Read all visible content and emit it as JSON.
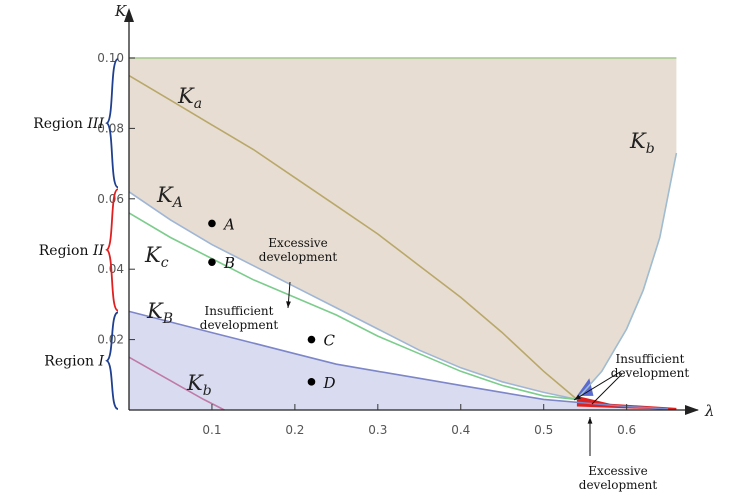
{
  "chart_data": {
    "type": "area",
    "xlabel": "λ",
    "ylabel": "K",
    "xlim": [
      0,
      0.68
    ],
    "ylim": [
      0,
      0.1
    ],
    "x_ticks": [
      "0.1",
      "0.2",
      "0.3",
      "0.4",
      "0.5",
      "0.6"
    ],
    "y_ticks": [
      "0.02",
      "0.04",
      "0.06",
      "0.08",
      "0.10"
    ],
    "curves": [
      {
        "id": "Ka_top",
        "label": "K",
        "sub": "a",
        "color": "#a3c98b",
        "x": [
          0,
          0.66
        ],
        "y": [
          0.1,
          0.1
        ]
      },
      {
        "id": "Ka",
        "label": "K",
        "sub": "a",
        "color": "#b9a86a",
        "x": [
          0,
          0.05,
          0.1,
          0.15,
          0.2,
          0.25,
          0.3,
          0.35,
          0.4,
          0.45,
          0.5,
          0.54
        ],
        "y": [
          0.095,
          0.088,
          0.081,
          0.074,
          0.066,
          0.058,
          0.05,
          0.041,
          0.032,
          0.022,
          0.011,
          0.003
        ]
      },
      {
        "id": "Kb_upper",
        "label": "K",
        "sub": "b",
        "color": "#9fbcd0",
        "x": [
          0.54,
          0.57,
          0.6,
          0.62,
          0.64,
          0.66
        ],
        "y": [
          0.003,
          0.011,
          0.023,
          0.034,
          0.049,
          0.073
        ]
      },
      {
        "id": "KA",
        "label": "K",
        "sub": "A",
        "color": "#9fb6d6",
        "x": [
          0,
          0.05,
          0.1,
          0.15,
          0.2,
          0.25,
          0.3,
          0.35,
          0.4,
          0.45,
          0.5,
          0.54
        ],
        "y": [
          0.062,
          0.054,
          0.047,
          0.041,
          0.035,
          0.029,
          0.023,
          0.017,
          0.012,
          0.008,
          0.005,
          0.003
        ]
      },
      {
        "id": "Kc",
        "label": "K",
        "sub": "c",
        "color": "#7ccc8c",
        "x": [
          0,
          0.05,
          0.1,
          0.15,
          0.2,
          0.25,
          0.3,
          0.35,
          0.4,
          0.45,
          0.5,
          0.54
        ],
        "y": [
          0.056,
          0.049,
          0.043,
          0.037,
          0.032,
          0.027,
          0.021,
          0.016,
          0.011,
          0.007,
          0.004,
          0.003
        ]
      },
      {
        "id": "KB",
        "label": "K",
        "sub": "B",
        "color": "#7d86c8",
        "x": [
          0,
          0.05,
          0.1,
          0.15,
          0.2,
          0.25,
          0.3,
          0.35,
          0.4,
          0.45,
          0.5,
          0.55,
          0.6,
          0.65
        ],
        "y": [
          0.028,
          0.025,
          0.022,
          0.019,
          0.016,
          0.013,
          0.011,
          0.009,
          0.007,
          0.005,
          0.003,
          0.002,
          0.001,
          0.0003
        ]
      },
      {
        "id": "Kb_lower",
        "label": "K",
        "sub": "b",
        "color": "#c07aa8",
        "x": [
          0,
          0.03,
          0.06,
          0.09,
          0.115
        ],
        "y": [
          0.015,
          0.011,
          0.007,
          0.003,
          0
        ]
      }
    ],
    "regions": [
      {
        "name": "upper",
        "color": "#e7ddd2",
        "between": [
          "Ka_top",
          "KA+Kb_upper"
        ]
      },
      {
        "name": "lower",
        "color": "#d9dcf0",
        "between": [
          "KB",
          "axis"
        ]
      },
      {
        "name": "excessive-red",
        "color": "#e0201e",
        "x": [
          0.54,
          0.66
        ]
      }
    ],
    "points": [
      {
        "label": "A",
        "x": 0.1,
        "y": 0.053
      },
      {
        "label": "B",
        "x": 0.1,
        "y": 0.042
      },
      {
        "label": "C",
        "x": 0.22,
        "y": 0.02
      },
      {
        "label": "D",
        "x": 0.22,
        "y": 0.008
      }
    ],
    "region_labels": [
      {
        "text": "Region",
        "roman": "III",
        "y_range": [
          0.063,
          0.1
        ],
        "color": "#1f3f8f"
      },
      {
        "text": "Region",
        "roman": "II",
        "y_range": [
          0.028,
          0.063
        ],
        "color": "#e02020"
      },
      {
        "text": "Region",
        "roman": "I",
        "y_range": [
          0,
          0.028
        ],
        "color": "#1f3f8f"
      }
    ],
    "annotations": [
      {
        "lines": [
          "Excessive",
          "development"
        ]
      },
      {
        "lines": [
          "Insufficient",
          "development"
        ]
      },
      {
        "lines": [
          "Insufficient",
          "development"
        ]
      },
      {
        "lines": [
          "Excessive",
          "development"
        ]
      }
    ]
  }
}
